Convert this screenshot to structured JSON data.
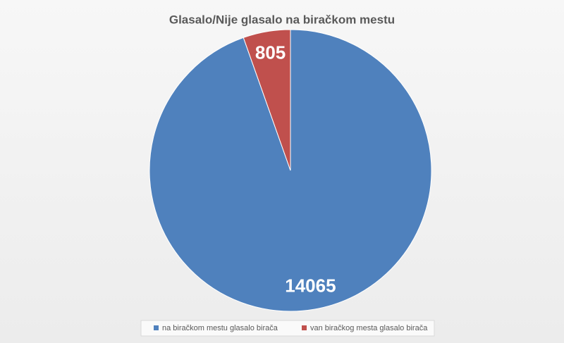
{
  "chart_data": {
    "type": "pie",
    "title": "Glasalo/Nije glasalo na biračkom mestu",
    "categories": [
      "na biračkom mestu glasalo birača",
      "van biračkog mesta glasalo birača"
    ],
    "values": [
      14065,
      805
    ],
    "colors": [
      "#4f81bd",
      "#c0504d"
    ],
    "legend": "bottom"
  }
}
